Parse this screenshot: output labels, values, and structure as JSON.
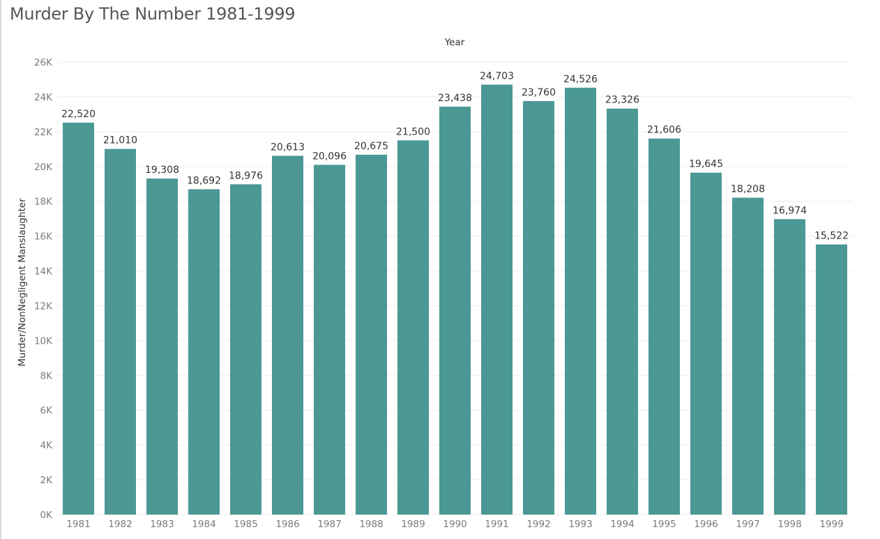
{
  "chart_data": {
    "type": "bar",
    "title": "Murder By The Number 1981-1999",
    "xlabel": "Year",
    "ylabel": "Murder/NonNegligent Manslaughter",
    "categories": [
      "1981",
      "1982",
      "1983",
      "1984",
      "1985",
      "1986",
      "1987",
      "1988",
      "1989",
      "1990",
      "1991",
      "1992",
      "1993",
      "1994",
      "1995",
      "1996",
      "1997",
      "1998",
      "1999"
    ],
    "values": [
      22520,
      21010,
      19308,
      18692,
      18976,
      20613,
      20096,
      20675,
      21500,
      23438,
      24703,
      23760,
      24526,
      23326,
      21606,
      19645,
      18208,
      16974,
      15522
    ],
    "value_labels": [
      "22,520",
      "21,010",
      "19,308",
      "18,692",
      "18,976",
      "20,613",
      "20,096",
      "20,675",
      "21,500",
      "23,438",
      "24,703",
      "23,760",
      "24,526",
      "23,326",
      "21,606",
      "19,645",
      "18,208",
      "16,974",
      "15,522"
    ],
    "y_ticks": [
      0,
      2000,
      4000,
      6000,
      8000,
      10000,
      12000,
      14000,
      16000,
      18000,
      20000,
      22000,
      24000,
      26000
    ],
    "y_tick_labels": [
      "0K",
      "2K",
      "4K",
      "6K",
      "8K",
      "10K",
      "12K",
      "14K",
      "16K",
      "18K",
      "20K",
      "22K",
      "24K",
      "26K"
    ],
    "ylim": [
      0,
      26000
    ],
    "grid": true,
    "xlabel_position": "top",
    "bar_color": "#4b9894"
  }
}
